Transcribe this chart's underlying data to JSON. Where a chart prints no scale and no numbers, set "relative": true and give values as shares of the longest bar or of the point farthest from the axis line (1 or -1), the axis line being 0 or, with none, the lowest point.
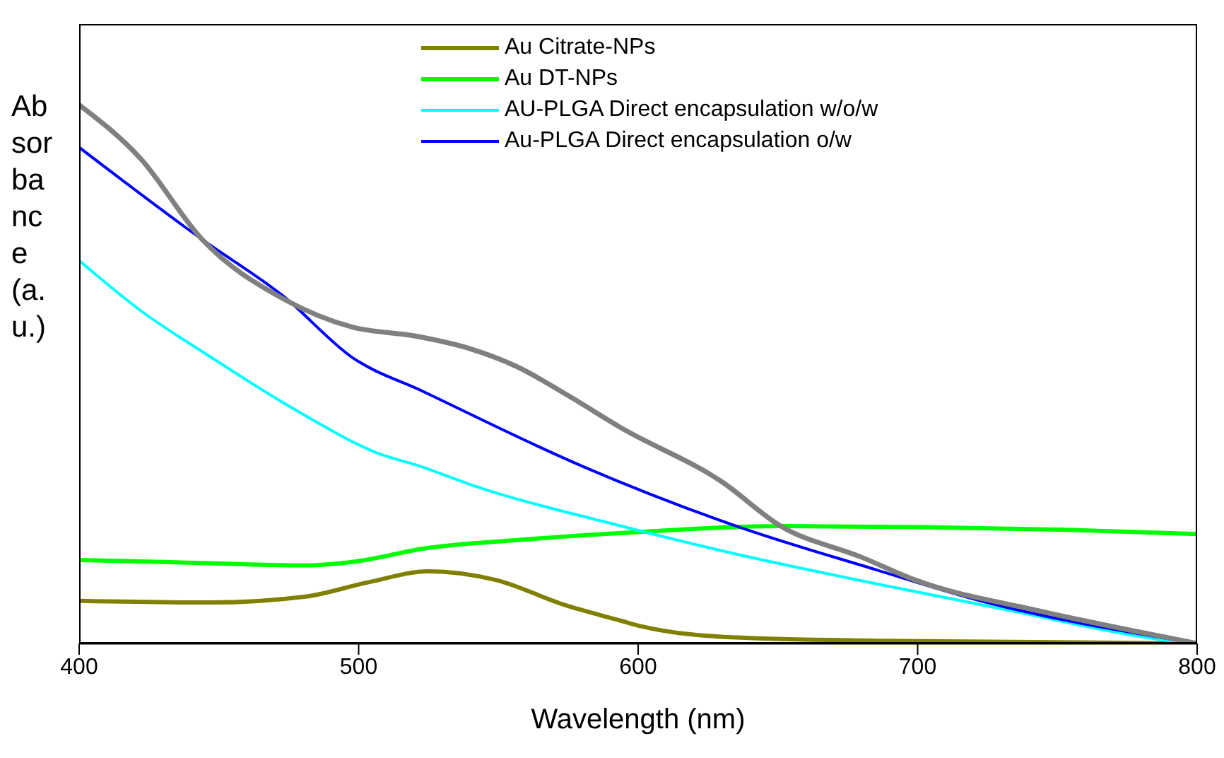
{
  "chart_data": {
    "type": "line",
    "xlabel": "Wavelength (nm)",
    "ylabel": "Absorbance (a.u.)",
    "relative": true,
    "xlim": [
      400,
      800
    ],
    "xticks": [
      400,
      500,
      600,
      700,
      800
    ],
    "legend": "top right",
    "grid": false,
    "marker": "none",
    "line_style": "solid",
    "series": [
      {
        "name": "Au Citrate-NPs",
        "color": "#808000",
        "x": [
          400,
          447,
          481,
          503,
          525,
          549,
          574,
          594,
          601,
          635,
          685,
          800
        ],
        "values": [
          0.079,
          0.076,
          0.087,
          0.113,
          0.134,
          0.118,
          0.071,
          0.042,
          0.032,
          0.011,
          0.005,
          0
        ]
      },
      {
        "name": "Au DT-NPs",
        "color": "#00ff00",
        "x": [
          400,
          439,
          481,
          500,
          523,
          557,
          594,
          651,
          702,
          753,
          800
        ],
        "values": [
          0.155,
          0.15,
          0.145,
          0.153,
          0.176,
          0.192,
          0.205,
          0.218,
          0.216,
          0.211,
          0.203
        ]
      },
      {
        "name": "AU-PLGA Direct encapsulation w/o/w",
        "color": "#00ffff",
        "x": [
          400,
          422,
          447,
          473,
          486,
          498,
          506,
          522,
          540,
          594,
          635,
          685,
          736,
          786,
          800
        ],
        "values": [
          0.711,
          0.618,
          0.532,
          0.447,
          0.408,
          0.374,
          0.355,
          0.329,
          0.295,
          0.218,
          0.166,
          0.111,
          0.058,
          0.008,
          0
        ]
      },
      {
        "name": "Au-PLGA Direct encapsulation o/w",
        "color": "#0000ff",
        "x": [
          400,
          444,
          473,
          498,
          523,
          580,
          635,
          685,
          719,
          800
        ],
        "values": [
          0.921,
          0.75,
          0.645,
          0.53,
          0.468,
          0.329,
          0.218,
          0.137,
          0.084,
          0
        ]
      },
      {
        "color": "#808080",
        "x": [
          400,
          422,
          444,
          473,
          498,
          520,
          540,
          557,
          575,
          594,
          630,
          651,
          680,
          699,
          744,
          800
        ],
        "values": [
          1.0,
          0.9,
          0.75,
          0.64,
          0.587,
          0.571,
          0.547,
          0.513,
          0.46,
          0.4,
          0.3,
          0.218,
          0.16,
          0.118,
          0.06,
          0
        ]
      }
    ]
  }
}
